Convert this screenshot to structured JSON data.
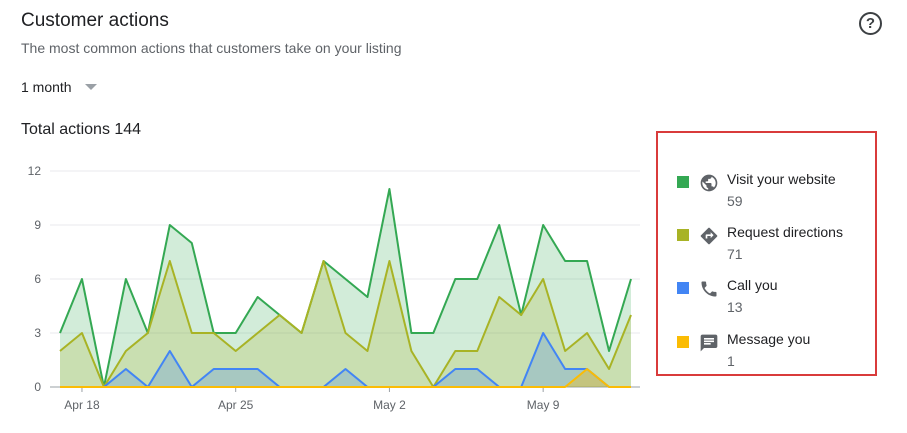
{
  "header": {
    "title": "Customer actions",
    "subtitle": "The most common actions that customers take on your listing",
    "help_icon": "help-circle-icon",
    "help_glyph": "?"
  },
  "range_selector": {
    "value": "1 month"
  },
  "total": {
    "label": "Total actions 144"
  },
  "legend": [
    {
      "label": "Visit your website",
      "count": "59",
      "color": "#34a853",
      "icon": "globe-icon"
    },
    {
      "label": "Request directions",
      "count": "71",
      "color": "#a8b325",
      "icon": "directions-icon"
    },
    {
      "label": "Call you",
      "count": "13",
      "color": "#4285f4",
      "icon": "phone-icon"
    },
    {
      "label": "Message you",
      "count": "1",
      "color": "#fbbc04",
      "icon": "message-icon"
    }
  ],
  "chart_data": {
    "type": "area",
    "title": "",
    "xlabel": "",
    "ylabel": "",
    "ylim": [
      0,
      12
    ],
    "yticks": [
      "0",
      "3",
      "6",
      "9",
      "12"
    ],
    "grid": true,
    "x_tick_labels": [
      {
        "index": 1,
        "label": "Apr 18"
      },
      {
        "index": 8,
        "label": "Apr 25"
      },
      {
        "index": 15,
        "label": "May 2"
      },
      {
        "index": 22,
        "label": "May 9"
      }
    ],
    "series": [
      {
        "name": "Visit your website",
        "color": "#34a853",
        "values": [
          3,
          6,
          0,
          6,
          3,
          9,
          8,
          3,
          3,
          5,
          4,
          3,
          7,
          6,
          5,
          11,
          3,
          3,
          6,
          6,
          9,
          4,
          9,
          7,
          7,
          2,
          6
        ]
      },
      {
        "name": "Request directions",
        "color": "#a8b325",
        "values": [
          2,
          3,
          0,
          2,
          3,
          7,
          3,
          3,
          2,
          3,
          4,
          3,
          7,
          3,
          2,
          7,
          2,
          0,
          2,
          2,
          5,
          4,
          6,
          2,
          3,
          1,
          4
        ]
      },
      {
        "name": "Call you",
        "color": "#4285f4",
        "values": [
          0,
          0,
          0,
          1,
          0,
          2,
          0,
          1,
          1,
          1,
          0,
          0,
          0,
          1,
          0,
          0,
          0,
          0,
          1,
          1,
          0,
          0,
          3,
          1,
          1,
          0,
          0
        ]
      },
      {
        "name": "Message you",
        "color": "#fbbc04",
        "values": [
          0,
          0,
          0,
          0,
          0,
          0,
          0,
          0,
          0,
          0,
          0,
          0,
          0,
          0,
          0,
          0,
          0,
          0,
          0,
          0,
          0,
          0,
          0,
          0,
          1,
          0,
          0
        ]
      }
    ]
  }
}
